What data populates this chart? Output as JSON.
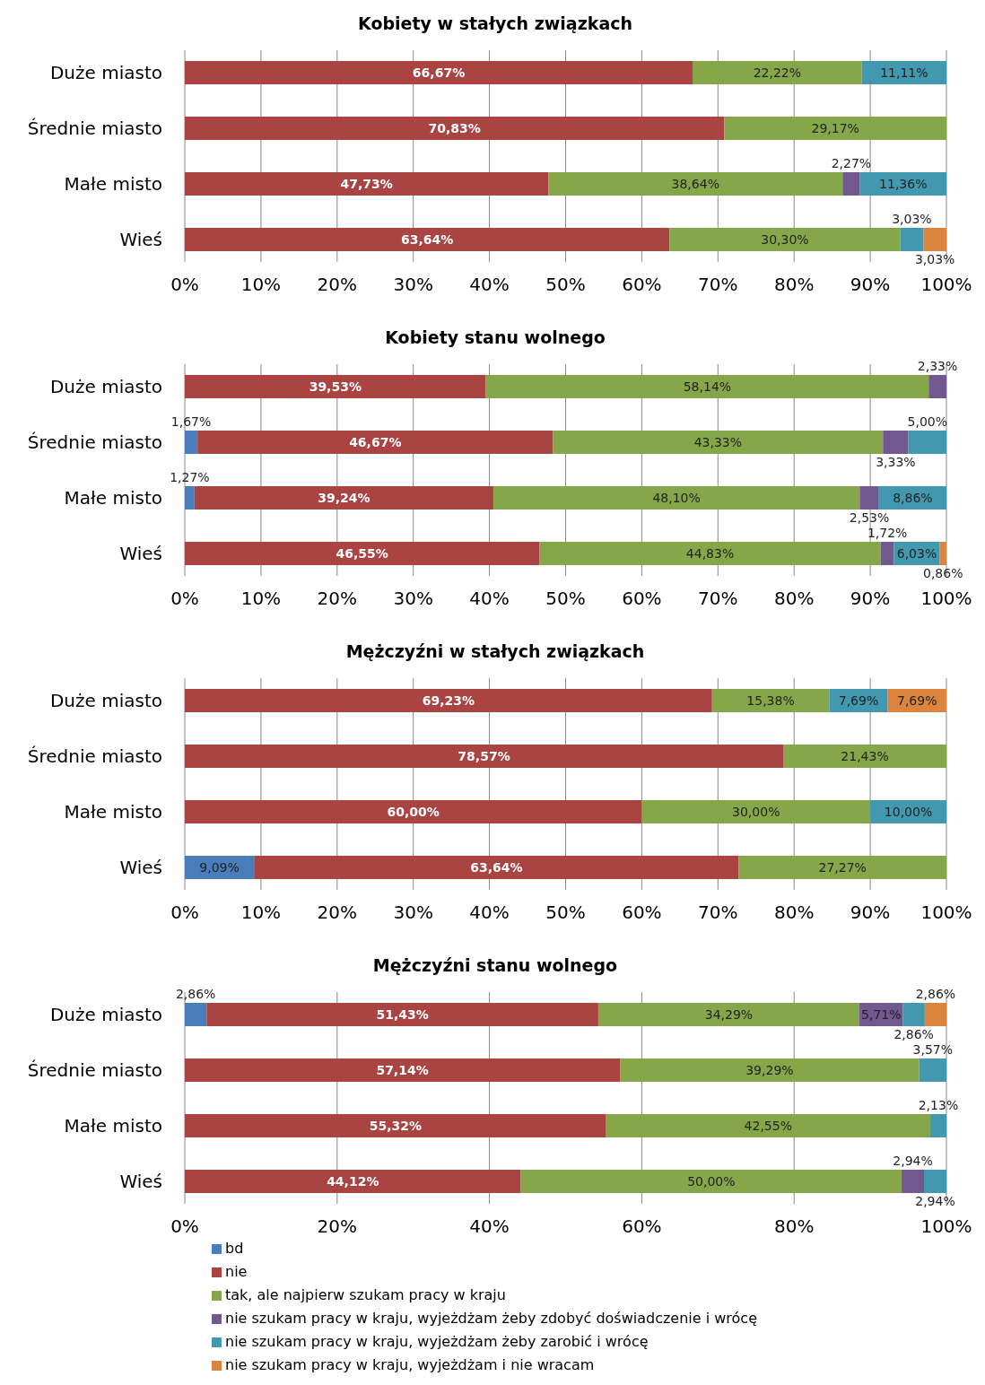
{
  "chart_data": [
    {
      "type": "bar",
      "orientation": "horizontal",
      "stacked": true,
      "title": "Kobiety w stałych związkach",
      "categories": [
        "Duże miasto",
        "Średnie miasto",
        "Małe misto",
        "Wieś"
      ],
      "xlim": [
        0,
        100
      ],
      "xticks": [
        {
          "value": 0,
          "label": "0%"
        },
        {
          "value": 10,
          "label": "10%"
        },
        {
          "value": 20,
          "label": "20%"
        },
        {
          "value": 30,
          "label": "30%"
        },
        {
          "value": 40,
          "label": "40%"
        },
        {
          "value": 50,
          "label": "50%"
        },
        {
          "value": 60,
          "label": "60%"
        },
        {
          "value": 70,
          "label": "70%"
        },
        {
          "value": 80,
          "label": "80%"
        },
        {
          "value": 90,
          "label": "90%"
        },
        {
          "value": 100,
          "label": "100%"
        }
      ],
      "grid": "x",
      "legend": false,
      "series": [
        {
          "color": "#a94442",
          "values": [
            66.67,
            70.83,
            47.73,
            63.64
          ],
          "value_labels": [
            "66,67%",
            "70,83%",
            "47,73%",
            "63,64%"
          ]
        },
        {
          "color": "#86a64a",
          "values": [
            22.22,
            29.17,
            38.64,
            30.3
          ],
          "value_labels": [
            "22,22%",
            "29,17%",
            "38,64%",
            "30,30%"
          ]
        },
        {
          "color": "#71588f",
          "values": [
            null,
            null,
            2.27,
            null
          ],
          "value_labels": [
            null,
            null,
            "2,27%",
            null
          ]
        },
        {
          "color": "#4198af",
          "values": [
            11.11,
            null,
            11.36,
            3.03
          ],
          "value_labels": [
            "11,11%",
            null,
            "11,36%",
            "3,03%"
          ]
        },
        {
          "color": "#db843d",
          "values": [
            null,
            null,
            null,
            3.03
          ],
          "value_labels": [
            null,
            null,
            null,
            "3,03%"
          ]
        }
      ]
    },
    {
      "type": "bar",
      "orientation": "horizontal",
      "stacked": true,
      "title": "Kobiety stanu wolnego",
      "categories": [
        "Duże miasto",
        "Średnie miasto",
        "Małe misto",
        "Wieś"
      ],
      "xlim": [
        0,
        100
      ],
      "xticks": [
        {
          "value": 0,
          "label": "0%"
        },
        {
          "value": 10,
          "label": "10%"
        },
        {
          "value": 20,
          "label": "20%"
        },
        {
          "value": 30,
          "label": "30%"
        },
        {
          "value": 40,
          "label": "40%"
        },
        {
          "value": 50,
          "label": "50%"
        },
        {
          "value": 60,
          "label": "60%"
        },
        {
          "value": 70,
          "label": "70%"
        },
        {
          "value": 80,
          "label": "80%"
        },
        {
          "value": 90,
          "label": "90%"
        },
        {
          "value": 100,
          "label": "100%"
        }
      ],
      "grid": "x",
      "legend": false,
      "series": [
        {
          "color": "#4a7ebb",
          "values": [
            null,
            1.67,
            1.27,
            null
          ],
          "value_labels": [
            null,
            "1,67%",
            "1,27%",
            null
          ]
        },
        {
          "color": "#a94442",
          "values": [
            39.53,
            46.67,
            39.24,
            46.55
          ],
          "value_labels": [
            "39,53%",
            "46,67%",
            "39,24%",
            "46,55%"
          ]
        },
        {
          "color": "#86a64a",
          "values": [
            58.14,
            43.33,
            48.1,
            44.83
          ],
          "value_labels": [
            "58,14%",
            "43,33%",
            "48,10%",
            "44,83%"
          ]
        },
        {
          "color": "#71588f",
          "values": [
            2.33,
            3.33,
            2.53,
            1.72
          ],
          "value_labels": [
            "2,33%",
            "3,33%",
            "2,53%",
            "1,72%"
          ]
        },
        {
          "color": "#4198af",
          "values": [
            null,
            5.0,
            8.86,
            6.03
          ],
          "value_labels": [
            null,
            "5,00%",
            "8,86%",
            "6,03%"
          ]
        },
        {
          "color": "#db843d",
          "values": [
            null,
            null,
            null,
            0.86
          ],
          "value_labels": [
            null,
            null,
            null,
            "0,86%"
          ]
        }
      ]
    },
    {
      "type": "bar",
      "orientation": "horizontal",
      "stacked": true,
      "title": "Mężczyźni w stałych związkach",
      "categories": [
        "Duże miasto",
        "Średnie miasto",
        "Małe misto",
        "Wieś"
      ],
      "xlim": [
        0,
        100
      ],
      "xticks": [
        {
          "value": 0,
          "label": "0%"
        },
        {
          "value": 10,
          "label": "10%"
        },
        {
          "value": 20,
          "label": "20%"
        },
        {
          "value": 30,
          "label": "30%"
        },
        {
          "value": 40,
          "label": "40%"
        },
        {
          "value": 50,
          "label": "50%"
        },
        {
          "value": 60,
          "label": "60%"
        },
        {
          "value": 70,
          "label": "70%"
        },
        {
          "value": 80,
          "label": "80%"
        },
        {
          "value": 90,
          "label": "90%"
        },
        {
          "value": 100,
          "label": "100%"
        }
      ],
      "grid": "x",
      "legend": false,
      "series": [
        {
          "color": "#4a7ebb",
          "values": [
            null,
            null,
            null,
            9.09
          ],
          "value_labels": [
            null,
            null,
            null,
            "9,09%"
          ]
        },
        {
          "color": "#a94442",
          "values": [
            69.23,
            78.57,
            60.0,
            63.64
          ],
          "value_labels": [
            "69,23%",
            "78,57%",
            "60,00%",
            "63,64%"
          ]
        },
        {
          "color": "#86a64a",
          "values": [
            15.38,
            21.43,
            30.0,
            27.27
          ],
          "value_labels": [
            "15,38%",
            "21,43%",
            "30,00%",
            "27,27%"
          ]
        },
        {
          "color": "#4198af",
          "values": [
            7.69,
            null,
            10.0,
            null
          ],
          "value_labels": [
            "7,69%",
            null,
            "10,00%",
            null
          ]
        },
        {
          "color": "#db843d",
          "values": [
            7.69,
            null,
            null,
            null
          ],
          "value_labels": [
            "7,69%",
            null,
            null,
            null
          ]
        }
      ]
    },
    {
      "type": "bar",
      "orientation": "horizontal",
      "stacked": true,
      "title": "Mężczyźni stanu wolnego",
      "categories": [
        "Duże miasto",
        "Średnie miasto",
        "Małe misto",
        "Wieś"
      ],
      "xlim": [
        0,
        100
      ],
      "xticks": [
        {
          "value": 0,
          "label": "0%"
        },
        {
          "value": 20,
          "label": "20%"
        },
        {
          "value": 40,
          "label": "40%"
        },
        {
          "value": 60,
          "label": "60%"
        },
        {
          "value": 80,
          "label": "80%"
        },
        {
          "value": 100,
          "label": "100%"
        }
      ],
      "grid": "x",
      "legend": "bottom",
      "series": [
        {
          "name": "bd",
          "color": "#4a7ebb",
          "values": [
            2.86,
            null,
            null,
            null
          ],
          "value_labels": [
            "2,86%",
            null,
            null,
            null
          ]
        },
        {
          "name": "nie",
          "color": "#a94442",
          "values": [
            51.43,
            57.14,
            55.32,
            44.12
          ],
          "value_labels": [
            "51,43%",
            "57,14%",
            "55,32%",
            "44,12%"
          ]
        },
        {
          "name": "tak, ale najpierw szukam pracy w kraju",
          "color": "#86a64a",
          "values": [
            34.29,
            39.29,
            42.55,
            50.0
          ],
          "value_labels": [
            "34,29%",
            "39,29%",
            "42,55%",
            "50,00%"
          ]
        },
        {
          "name": "nie szukam pracy w kraju, wyjeżdżam żeby zdobyć doświadczenie i wrócę",
          "color": "#71588f",
          "values": [
            5.71,
            null,
            null,
            2.94
          ],
          "value_labels": [
            "5,71%",
            null,
            null,
            "2,94%"
          ]
        },
        {
          "name": "nie szukam pracy w kraju, wyjeżdżam żeby zarobić i wrócę",
          "color": "#4198af",
          "values": [
            2.86,
            3.57,
            2.13,
            2.94
          ],
          "value_labels": [
            "2,86%",
            "3,57%",
            "2,13%",
            "2,94%"
          ]
        },
        {
          "name": "nie szukam pracy w kraju, wyjeżdżam i nie wracam",
          "color": "#db843d",
          "values": [
            2.86,
            null,
            null,
            null
          ],
          "value_labels": [
            "2,86%",
            null,
            null,
            null
          ]
        }
      ]
    }
  ]
}
